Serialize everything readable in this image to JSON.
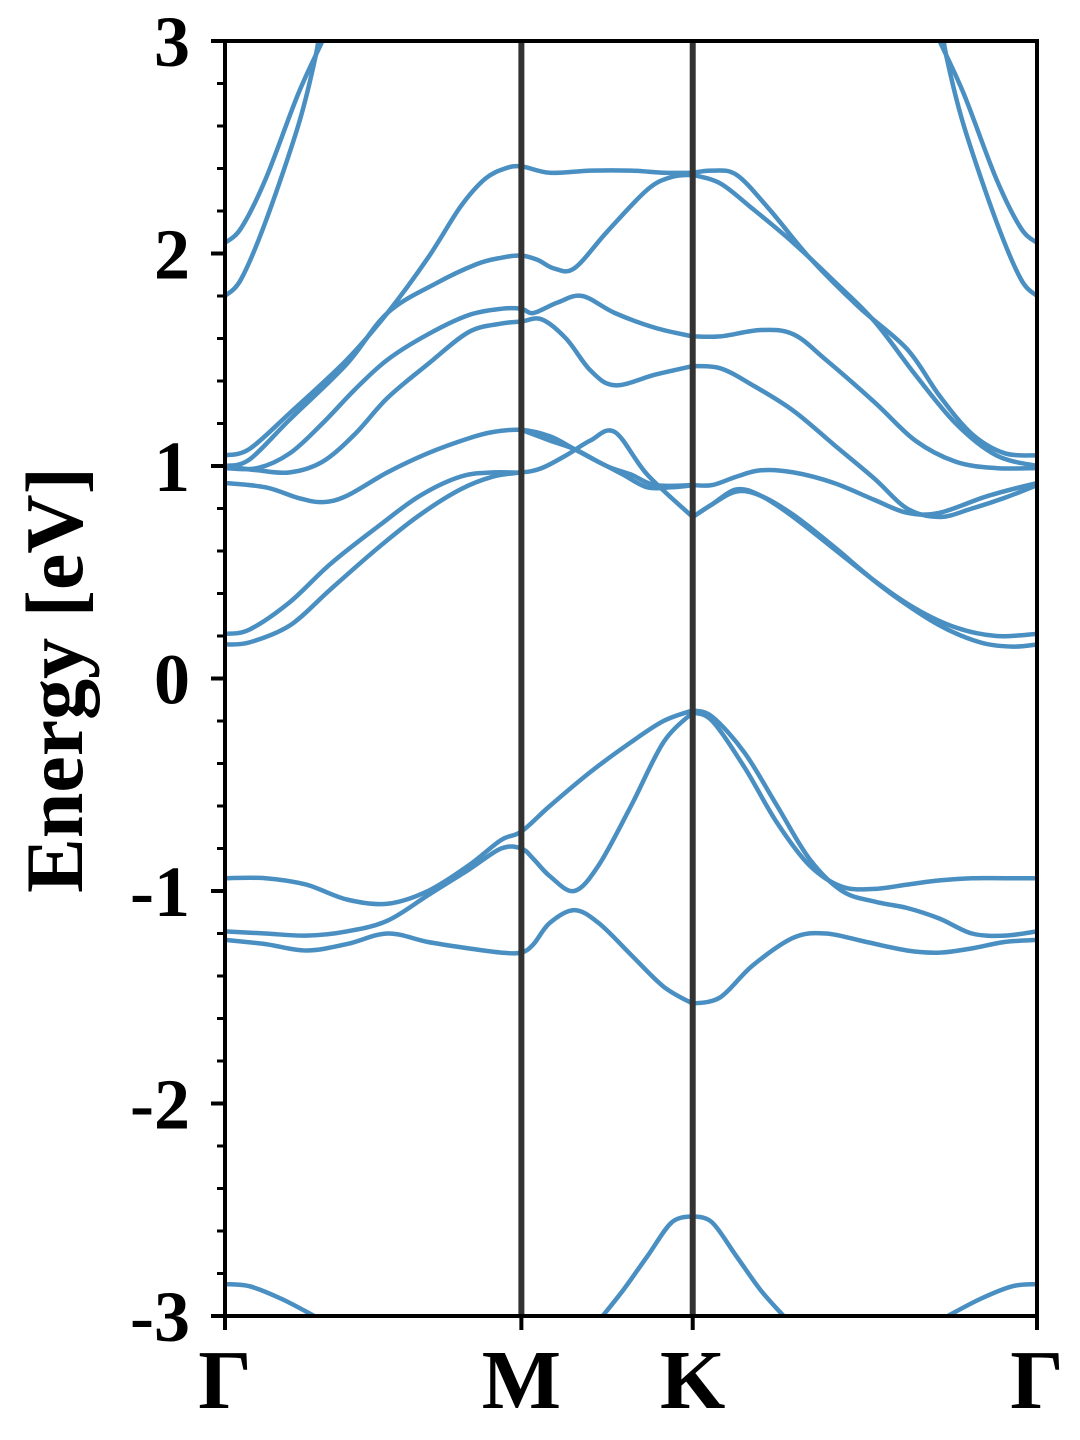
{
  "chart_data": {
    "type": "line",
    "title": "",
    "xlabel": "",
    "ylabel": "Energy [eV]",
    "ylim": [
      -3,
      3
    ],
    "yticks": [
      {
        "value": 3,
        "label": "3"
      },
      {
        "value": 2,
        "label": "2"
      },
      {
        "value": 1,
        "label": "1"
      },
      {
        "value": 0,
        "label": "0"
      },
      {
        "value": -1,
        "label": "-1"
      },
      {
        "value": -2,
        "label": "-2"
      },
      {
        "value": -3,
        "label": "-3"
      }
    ],
    "y_minor_step": 0.2,
    "kpath": [
      {
        "label": "Γ",
        "pos": 0.0
      },
      {
        "label": "M",
        "pos": 0.365
      },
      {
        "label": "K",
        "pos": 0.576
      },
      {
        "label": "Γ",
        "pos": 1.0
      }
    ],
    "grid": false,
    "legend": "none",
    "colors": {
      "band": "#4a8fc2",
      "kline": "#333333",
      "axis": "#000000"
    },
    "series": [
      {
        "x": [
          0,
          0.02,
          0.05,
          0.09,
          0.12,
          0.1286
        ],
        "y": [
          2.05,
          2.12,
          2.35,
          2.75,
          3.0,
          3.08
        ]
      },
      {
        "x": [
          0,
          0.02,
          0.05,
          0.09,
          0.11,
          0.117
        ],
        "y": [
          1.8,
          1.88,
          2.15,
          2.6,
          2.9,
          3.05
        ]
      },
      {
        "x": [
          1,
          0.98,
          0.95,
          0.91,
          0.88,
          0.8714
        ],
        "y": [
          2.05,
          2.12,
          2.35,
          2.75,
          3.0,
          3.08
        ]
      },
      {
        "x": [
          1,
          0.98,
          0.95,
          0.91,
          0.89,
          0.883
        ],
        "y": [
          1.8,
          1.88,
          2.15,
          2.6,
          2.9,
          3.05
        ]
      },
      {
        "x": [
          0,
          0.03,
          0.08,
          0.15,
          0.2,
          0.25,
          0.29,
          0.32,
          0.345,
          0.365,
          0.4,
          0.45,
          0.5,
          0.54,
          0.576
        ],
        "y": [
          1.05,
          1.08,
          1.25,
          1.5,
          1.72,
          1.98,
          2.22,
          2.35,
          2.4,
          2.41,
          2.38,
          2.39,
          2.39,
          2.38,
          2.38
        ]
      },
      {
        "x": [
          0,
          0.03,
          0.08,
          0.15,
          0.2,
          0.26,
          0.31,
          0.34,
          0.365,
          0.385,
          0.405,
          0.43,
          0.47,
          0.52,
          0.55,
          0.576
        ],
        "y": [
          1.0,
          1.03,
          1.22,
          1.48,
          1.72,
          1.86,
          1.95,
          1.98,
          1.99,
          1.97,
          1.93,
          1.93,
          2.1,
          2.3,
          2.36,
          2.37
        ]
      },
      {
        "x": [
          0,
          0.04,
          0.08,
          0.12,
          0.16,
          0.2,
          0.25,
          0.3,
          0.34,
          0.365,
          0.38,
          0.41,
          0.44,
          0.48,
          0.53,
          0.576
        ],
        "y": [
          0.99,
          0.99,
          1.06,
          1.2,
          1.36,
          1.5,
          1.62,
          1.71,
          1.74,
          1.74,
          1.72,
          1.77,
          1.8,
          1.72,
          1.65,
          1.61
        ]
      },
      {
        "x": [
          0,
          0.04,
          0.08,
          0.12,
          0.16,
          0.2,
          0.25,
          0.3,
          0.34,
          0.365,
          0.39,
          0.42,
          0.45,
          0.48,
          0.53,
          0.576
        ],
        "y": [
          1.0,
          0.98,
          0.97,
          1.02,
          1.15,
          1.32,
          1.48,
          1.63,
          1.67,
          1.68,
          1.69,
          1.6,
          1.45,
          1.38,
          1.43,
          1.47
        ]
      },
      {
        "x": [
          0,
          0.05,
          0.09,
          0.12,
          0.15,
          0.2,
          0.25,
          0.3,
          0.33,
          0.365,
          0.4,
          0.43,
          0.47,
          0.5,
          0.53,
          0.576
        ],
        "y": [
          0.92,
          0.9,
          0.85,
          0.83,
          0.86,
          0.97,
          1.06,
          1.13,
          1.16,
          1.17,
          1.14,
          1.08,
          1.0,
          0.96,
          0.91,
          0.91
        ]
      },
      {
        "x": [
          0,
          0.03,
          0.08,
          0.13,
          0.19,
          0.24,
          0.29,
          0.33,
          0.365,
          0.39,
          0.42,
          0.45,
          0.48,
          0.52,
          0.576
        ],
        "y": [
          0.21,
          0.23,
          0.36,
          0.54,
          0.72,
          0.86,
          0.95,
          0.97,
          0.97,
          0.99,
          1.05,
          1.12,
          1.16,
          0.96,
          0.76
        ]
      },
      {
        "x": [
          0,
          0.03,
          0.08,
          0.13,
          0.19,
          0.24,
          0.29,
          0.33,
          0.365
        ],
        "y": [
          0.16,
          0.17,
          0.25,
          0.42,
          0.62,
          0.77,
          0.89,
          0.95,
          0.97
        ]
      },
      {
        "x": [
          0.365,
          0.4,
          0.43,
          0.46,
          0.49,
          0.52,
          0.55,
          0.576
        ],
        "y": [
          1.17,
          1.12,
          1.08,
          1.02,
          0.96,
          0.9,
          0.9,
          0.91
        ]
      },
      {
        "x": [
          0.576,
          0.6,
          0.63,
          0.67,
          0.72,
          0.78,
          0.84,
          0.88,
          0.92,
          0.96,
          1
        ],
        "y": [
          2.38,
          2.39,
          2.37,
          2.21,
          1.98,
          1.75,
          1.55,
          1.33,
          1.15,
          1.06,
          1.05
        ]
      },
      {
        "x": [
          0.576,
          0.61,
          0.65,
          0.7,
          0.75,
          0.8,
          0.85,
          0.9,
          0.95,
          1
        ],
        "y": [
          2.37,
          2.33,
          2.21,
          2.05,
          1.87,
          1.68,
          1.43,
          1.2,
          1.05,
          1.0
        ]
      },
      {
        "x": [
          0.576,
          0.61,
          0.66,
          0.7,
          0.74,
          0.8,
          0.85,
          0.9,
          0.95,
          1
        ],
        "y": [
          1.61,
          1.61,
          1.64,
          1.62,
          1.5,
          1.3,
          1.12,
          1.02,
          0.99,
          0.99
        ]
      },
      {
        "x": [
          0.576,
          0.61,
          0.65,
          0.7,
          0.75,
          0.8,
          0.84,
          0.88,
          0.92,
          0.96,
          1
        ],
        "y": [
          1.47,
          1.46,
          1.38,
          1.26,
          1.1,
          0.94,
          0.8,
          0.76,
          0.8,
          0.85,
          0.91
        ]
      },
      {
        "x": [
          0.576,
          0.6,
          0.63,
          0.66,
          0.7,
          0.75,
          0.8,
          0.84,
          0.88,
          0.94,
          1
        ],
        "y": [
          0.91,
          0.91,
          0.95,
          0.98,
          0.97,
          0.92,
          0.84,
          0.78,
          0.78,
          0.86,
          0.92
        ]
      },
      {
        "x": [
          0.576,
          0.6,
          0.63,
          0.66,
          0.7,
          0.75,
          0.8,
          0.85,
          0.9,
          0.95,
          1
        ],
        "y": [
          0.76,
          0.82,
          0.88,
          0.86,
          0.77,
          0.62,
          0.46,
          0.33,
          0.24,
          0.2,
          0.21
        ]
      },
      {
        "x": [
          0.576,
          0.6,
          0.63,
          0.66,
          0.7,
          0.76,
          0.82,
          0.88,
          0.93,
          0.97,
          1
        ],
        "y": [
          0.76,
          0.82,
          0.89,
          0.86,
          0.76,
          0.58,
          0.4,
          0.25,
          0.17,
          0.15,
          0.16
        ]
      },
      {
        "x": [
          0,
          0.05,
          0.1,
          0.15,
          0.2,
          0.25,
          0.3,
          0.34,
          0.365,
          0.4,
          0.45,
          0.5,
          0.54,
          0.576
        ],
        "y": [
          -0.94,
          -0.94,
          -0.97,
          -1.04,
          -1.06,
          -1.0,
          -0.88,
          -0.76,
          -0.72,
          -0.6,
          -0.44,
          -0.3,
          -0.2,
          -0.15
        ]
      },
      {
        "x": [
          0,
          0.05,
          0.1,
          0.15,
          0.2,
          0.25,
          0.3,
          0.34,
          0.365,
          0.38,
          0.4,
          0.43,
          0.46,
          0.5,
          0.54,
          0.576
        ],
        "y": [
          -1.19,
          -1.2,
          -1.21,
          -1.19,
          -1.14,
          -1.02,
          -0.9,
          -0.8,
          -0.8,
          -0.85,
          -0.93,
          -1.0,
          -0.88,
          -0.6,
          -0.3,
          -0.16
        ]
      },
      {
        "x": [
          0,
          0.05,
          0.1,
          0.15,
          0.2,
          0.25,
          0.3,
          0.34,
          0.365,
          0.38,
          0.4,
          0.43,
          0.46,
          0.5,
          0.54,
          0.576
        ],
        "y": [
          -1.23,
          -1.25,
          -1.28,
          -1.25,
          -1.2,
          -1.24,
          -1.27,
          -1.29,
          -1.29,
          -1.25,
          -1.15,
          -1.09,
          -1.15,
          -1.3,
          -1.45,
          -1.53
        ]
      },
      {
        "x": [
          0.576,
          0.6,
          0.64,
          0.68,
          0.72,
          0.76,
          0.8,
          0.84,
          0.88,
          0.92,
          0.96,
          1
        ],
        "y": [
          -0.15,
          -0.18,
          -0.35,
          -0.6,
          -0.85,
          -1.0,
          -1.05,
          -1.08,
          -1.13,
          -1.2,
          -1.21,
          -1.19
        ]
      },
      {
        "x": [
          0.576,
          0.6,
          0.64,
          0.68,
          0.72,
          0.76,
          0.8,
          0.84,
          0.88,
          0.92,
          0.96,
          1
        ],
        "y": [
          -0.16,
          -0.2,
          -0.42,
          -0.68,
          -0.88,
          -0.98,
          -0.99,
          -0.97,
          -0.95,
          -0.94,
          -0.94,
          -0.94
        ]
      },
      {
        "x": [
          0.576,
          0.61,
          0.65,
          0.7,
          0.74,
          0.79,
          0.84,
          0.88,
          0.92,
          0.96,
          1
        ],
        "y": [
          -1.53,
          -1.5,
          -1.35,
          -1.22,
          -1.2,
          -1.24,
          -1.28,
          -1.29,
          -1.27,
          -1.24,
          -1.23
        ]
      },
      {
        "x": [
          0.576,
          0.6,
          0.63,
          0.66,
          0.688
        ],
        "y": [
          -2.53,
          -2.56,
          -2.72,
          -2.88,
          -3.0
        ]
      },
      {
        "x": [
          0.576,
          0.55,
          0.52,
          0.49,
          0.465
        ],
        "y": [
          -2.53,
          -2.56,
          -2.72,
          -2.88,
          -3.0
        ]
      },
      {
        "x": [
          0,
          0.03,
          0.07,
          0.11
        ],
        "y": [
          -2.85,
          -2.86,
          -2.92,
          -3.0
        ]
      },
      {
        "x": [
          1,
          0.97,
          0.93,
          0.89
        ],
        "y": [
          -2.85,
          -2.86,
          -2.92,
          -3.0
        ]
      }
    ]
  }
}
